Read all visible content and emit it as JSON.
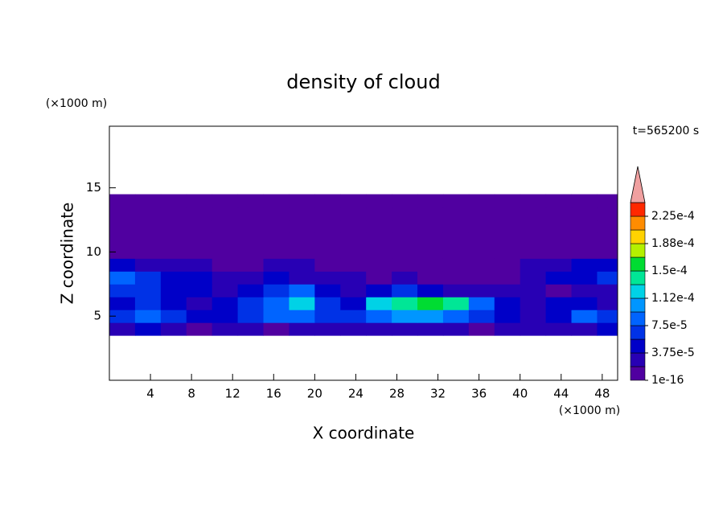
{
  "chart_data": {
    "type": "contour",
    "title": "density of cloud",
    "xlabel": "X coordinate",
    "ylabel": "Z coordinate",
    "x_unit": "(×1000 m)",
    "y_unit": "(×1000 m)",
    "annotation": "t=565200 s",
    "xlim": [
      0,
      49.5
    ],
    "ylim": [
      0,
      19.8
    ],
    "xticks": [
      4,
      8,
      12,
      16,
      20,
      24,
      28,
      32,
      36,
      40,
      44,
      48
    ],
    "yticks": [
      5,
      10,
      15
    ],
    "x": [
      1.25,
      3.75,
      6.25,
      8.75,
      11.25,
      13.75,
      16.25,
      18.75,
      21.25,
      23.75,
      26.25,
      28.75,
      31.25,
      33.75,
      36.25,
      38.75,
      41.25,
      43.75,
      46.25,
      48.75
    ],
    "y": [
      4,
      5,
      6,
      7,
      8,
      9,
      10,
      11,
      12,
      13,
      14
    ],
    "values": [
      [
        3e-05,
        5e-05,
        3e-05,
        1e-06,
        3e-05,
        3e-05,
        1e-06,
        3e-05,
        3e-05,
        3e-05,
        3e-05,
        3e-05,
        3e-05,
        3e-05,
        1e-06,
        3e-05,
        3e-05,
        3e-05,
        3e-05,
        5e-05
      ],
      [
        7e-05,
        9e-05,
        7e-05,
        5e-05,
        5e-05,
        7e-05,
        9e-05,
        9e-05,
        7e-05,
        7e-05,
        9e-05,
        0.0001,
        0.0001,
        9e-05,
        7e-05,
        5e-05,
        3e-05,
        5e-05,
        9e-05,
        7e-05
      ],
      [
        5e-05,
        7e-05,
        5e-05,
        3e-05,
        5e-05,
        7e-05,
        9e-05,
        0.00012,
        7e-05,
        5e-05,
        0.00012,
        0.00014,
        0.00016,
        0.00014,
        9e-05,
        5e-05,
        3e-05,
        5e-05,
        5e-05,
        3e-05
      ],
      [
        7e-05,
        7e-05,
        5e-05,
        5e-05,
        3e-05,
        5e-05,
        7e-05,
        9e-05,
        5e-05,
        3e-05,
        5e-05,
        7e-05,
        5e-05,
        3e-05,
        3e-05,
        3e-05,
        3e-05,
        1e-06,
        3e-05,
        3e-05
      ],
      [
        9e-05,
        7e-05,
        5e-05,
        5e-05,
        3e-05,
        3e-05,
        5e-05,
        3e-05,
        3e-05,
        3e-05,
        1e-06,
        3e-05,
        1e-06,
        1e-06,
        1e-06,
        1e-06,
        3e-05,
        5e-05,
        5e-05,
        7e-05
      ],
      [
        5e-05,
        3e-05,
        3e-05,
        3e-05,
        1e-06,
        1e-06,
        3e-05,
        3e-05,
        1e-06,
        1e-06,
        1e-06,
        1e-06,
        1e-06,
        1e-06,
        1e-06,
        1e-06,
        3e-05,
        3e-05,
        5e-05,
        5e-05
      ],
      [
        1e-06,
        1e-06,
        1e-06,
        1e-06,
        1e-06,
        1e-06,
        1e-06,
        1e-06,
        1e-06,
        1e-06,
        1e-06,
        1e-06,
        1e-06,
        1e-06,
        1e-06,
        1e-06,
        1e-06,
        1e-06,
        1e-06,
        1e-06
      ],
      [
        1e-06,
        1e-06,
        1e-06,
        1e-06,
        1e-06,
        1e-06,
        1e-06,
        1e-06,
        1e-06,
        1e-06,
        1e-06,
        1e-06,
        1e-06,
        1e-06,
        1e-06,
        1e-06,
        1e-06,
        1e-06,
        1e-06,
        1e-06
      ],
      [
        1e-06,
        1e-06,
        1e-06,
        1e-06,
        1e-06,
        1e-06,
        1e-06,
        1e-06,
        1e-06,
        1e-06,
        1e-06,
        1e-06,
        1e-06,
        1e-06,
        1e-06,
        1e-06,
        1e-06,
        1e-06,
        1e-06,
        1e-06
      ],
      [
        1e-06,
        1e-06,
        1e-06,
        1e-06,
        1e-06,
        1e-06,
        1e-06,
        1e-06,
        1e-06,
        1e-06,
        1e-06,
        1e-06,
        1e-06,
        1e-06,
        1e-06,
        1e-06,
        1e-06,
        1e-06,
        1e-06,
        1e-06
      ],
      [
        1e-06,
        1e-06,
        1e-06,
        1e-06,
        1e-06,
        1e-06,
        1e-06,
        1e-06,
        1e-06,
        1e-06,
        1e-06,
        1e-06,
        1e-06,
        1e-06,
        1e-06,
        1e-06,
        1e-06,
        1e-06,
        1e-06,
        1e-06
      ]
    ],
    "colorbar": {
      "levels": [
        1e-16,
        1.875e-05,
        3.75e-05,
        5.625e-05,
        7.5e-05,
        9.375e-05,
        0.0001125,
        0.00013125,
        0.00015,
        0.00016875,
        0.0001875,
        0.00020625,
        0.000225,
        0.00024375
      ],
      "colors": [
        "#5000a0",
        "#2800b4",
        "#0000c8",
        "#0032e6",
        "#0064ff",
        "#0096ff",
        "#00d2e6",
        "#00e696",
        "#00dc32",
        "#b4f000",
        "#ffd200",
        "#ff8c00",
        "#ff2800"
      ],
      "extend_color": "#f0a0a0",
      "ticks": [
        {
          "value": 1e-16,
          "label": "1e-16"
        },
        {
          "value": 3.75e-05,
          "label": "3.75e-5"
        },
        {
          "value": 7.5e-05,
          "label": "7.5e-5"
        },
        {
          "value": 0.0001125,
          "label": "1.12e-4"
        },
        {
          "value": 0.00015,
          "label": "1.5e-4"
        },
        {
          "value": 0.0001875,
          "label": "1.88e-4"
        },
        {
          "value": 0.000225,
          "label": "2.25e-4"
        }
      ]
    }
  }
}
